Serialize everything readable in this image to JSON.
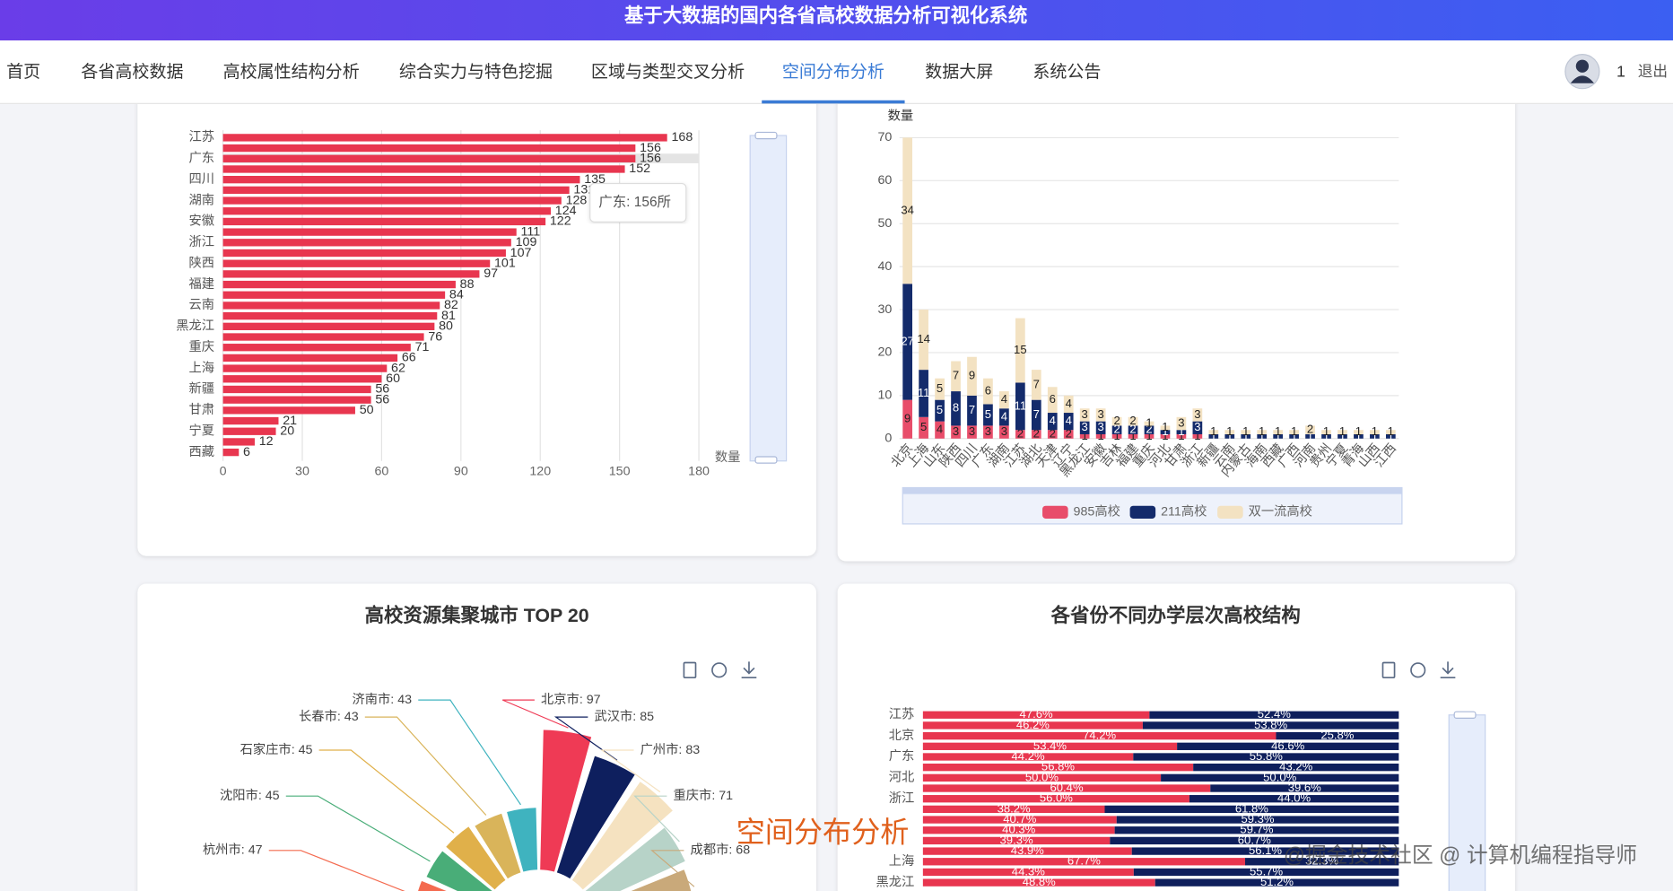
{
  "header": {
    "title": "基于大数据的国内各省高校数据分析可视化系统"
  },
  "nav": {
    "items": [
      "首页",
      "各省高校数据",
      "高校属性结构分析",
      "综合实力与特色挖掘",
      "区域与类型交叉分析",
      "空间分布分析",
      "数据大屏",
      "系统公告"
    ],
    "active": 5
  },
  "user": {
    "name": "1",
    "logout": "退出"
  },
  "chart_data": [
    {
      "type": "hbar",
      "categories": [
        "江苏",
        null,
        "广东",
        null,
        "四川",
        null,
        "湖南",
        null,
        "安徽",
        null,
        "浙江",
        null,
        "陕西",
        null,
        "福建",
        null,
        "云南",
        null,
        "黑龙江",
        null,
        "重庆",
        null,
        "上海",
        null,
        "新疆",
        null,
        "甘肃",
        null,
        "宁夏",
        null,
        "西藏"
      ],
      "values": [
        168,
        156,
        156,
        152,
        135,
        131,
        128,
        124,
        122,
        111,
        109,
        107,
        101,
        97,
        88,
        84,
        82,
        81,
        80,
        76,
        71,
        66,
        62,
        60,
        56,
        56,
        50,
        21,
        20,
        12,
        6
      ],
      "color": "#e8364f",
      "xlim": [
        0,
        180
      ],
      "xticks": [
        0,
        30,
        60,
        90,
        120,
        150,
        180
      ],
      "x_label": "数量",
      "grid": true,
      "tooltip": "广东: 156所"
    },
    {
      "type": "stacked-bar",
      "categories": [
        "北京",
        "上海",
        "山东",
        "陕西",
        "四川",
        "广东",
        "湖南",
        "江苏",
        "湖北",
        "天津",
        "辽宁",
        "黑龙江",
        "安徽",
        "吉林",
        "福建",
        "重庆",
        "河北",
        "甘肃",
        "浙江",
        "新疆",
        "云南",
        "内蒙古",
        "海南",
        "西藏",
        "广西",
        "河南",
        "贵州",
        "宁夏",
        "青海",
        "山西",
        "江西"
      ],
      "series": [
        {
          "name": "985高校",
          "color": "#e84d6a",
          "values": [
            9,
            5,
            4,
            3,
            3,
            3,
            3,
            2,
            2,
            2,
            2,
            1,
            1,
            1,
            1,
            1,
            1,
            1,
            1,
            0,
            0,
            0,
            0,
            0,
            0,
            0,
            0,
            0,
            0,
            0,
            0
          ]
        },
        {
          "name": "211高校",
          "color": "#142b6b",
          "values": [
            27,
            11,
            5,
            8,
            7,
            5,
            4,
            11,
            7,
            4,
            4,
            3,
            3,
            2,
            2,
            2,
            1,
            1,
            3,
            1,
            1,
            1,
            1,
            1,
            1,
            1,
            1,
            1,
            1,
            1,
            1
          ]
        },
        {
          "name": "双一流高校",
          "color": "#f3e2c2",
          "values": [
            34,
            14,
            5,
            7,
            9,
            6,
            4,
            15,
            7,
            6,
            4,
            3,
            3,
            2,
            2,
            1,
            1,
            3,
            3,
            1,
            1,
            1,
            1,
            1,
            1,
            2,
            1,
            1,
            1,
            1,
            1
          ]
        }
      ],
      "ylim": [
        0,
        70
      ],
      "yticks": [
        0,
        10,
        20,
        30,
        40,
        50,
        60,
        70
      ],
      "y_label": "数量",
      "grid": true,
      "legend": "bottom"
    },
    {
      "type": "rose",
      "title": "高校资源集聚城市 TOP 20",
      "values": [
        47,
        45,
        45,
        43,
        43,
        97,
        85,
        83,
        71,
        68
      ],
      "value_labels": [
        "杭州市: 47",
        "沈阳市: 45",
        "石家庄市: 45",
        "长春市: 43",
        "济南市: 43",
        "北京市: 97",
        "武汉市: 85",
        "广州市: 83",
        "重庆市: 71",
        "成都市: 68"
      ],
      "colors": [
        "#f46a4f",
        "#49ad78",
        "#e0b04a",
        "#d9b45a",
        "#3fb3bf",
        "#ef3a55",
        "#0e1f5e",
        "#f5e2c0",
        "#b7d3c8",
        "#c9a97a"
      ]
    },
    {
      "type": "stacked-hbar-percent",
      "title": "各省份不同办学层次高校结构",
      "categories": [
        "江苏",
        null,
        "北京",
        null,
        "广东",
        null,
        "河北",
        null,
        "浙江",
        null,
        null,
        null,
        null,
        null,
        "上海",
        null,
        "黑龙江"
      ],
      "series": [
        {
          "color": "#e8364f",
          "values": [
            47.6,
            46.2,
            74.2,
            53.4,
            44.2,
            56.8,
            50.0,
            60.4,
            56.0,
            38.2,
            40.7,
            40.3,
            39.3,
            43.9,
            67.7,
            44.3,
            48.8
          ],
          "value_labels": [
            "47.6%",
            "46.2%",
            "74.2%",
            "53.4%",
            "44.2%",
            "56.8%",
            "50.0%",
            "60.4%",
            "56.0%",
            "38.2%",
            "40.7%",
            "40.3%",
            "39.3%",
            "43.9%",
            "67.7%",
            "44.3%",
            "48.8%"
          ]
        },
        {
          "color": "#0f1f5c",
          "values": [
            52.4,
            53.8,
            25.8,
            46.6,
            55.8,
            43.2,
            50.0,
            39.6,
            44.0,
            61.8,
            59.3,
            59.7,
            60.7,
            56.1,
            32.3,
            55.7,
            51.2
          ],
          "value_labels": [
            "52.4%",
            "53.8%",
            "25.8%",
            "46.6%",
            "55.8%",
            "43.2%",
            "50.0%",
            "39.6%",
            "44.0%",
            "61.8%",
            "59.3%",
            "59.7%",
            "60.7%",
            "56.1%",
            "32.3%",
            "55.7%",
            "51.2%"
          ]
        }
      ],
      "xlim": [
        0,
        100
      ]
    }
  ],
  "overlay": {
    "caption": "空间分布分析",
    "watermark": "@掘金技术社区 @ 计算机编程指导师"
  }
}
